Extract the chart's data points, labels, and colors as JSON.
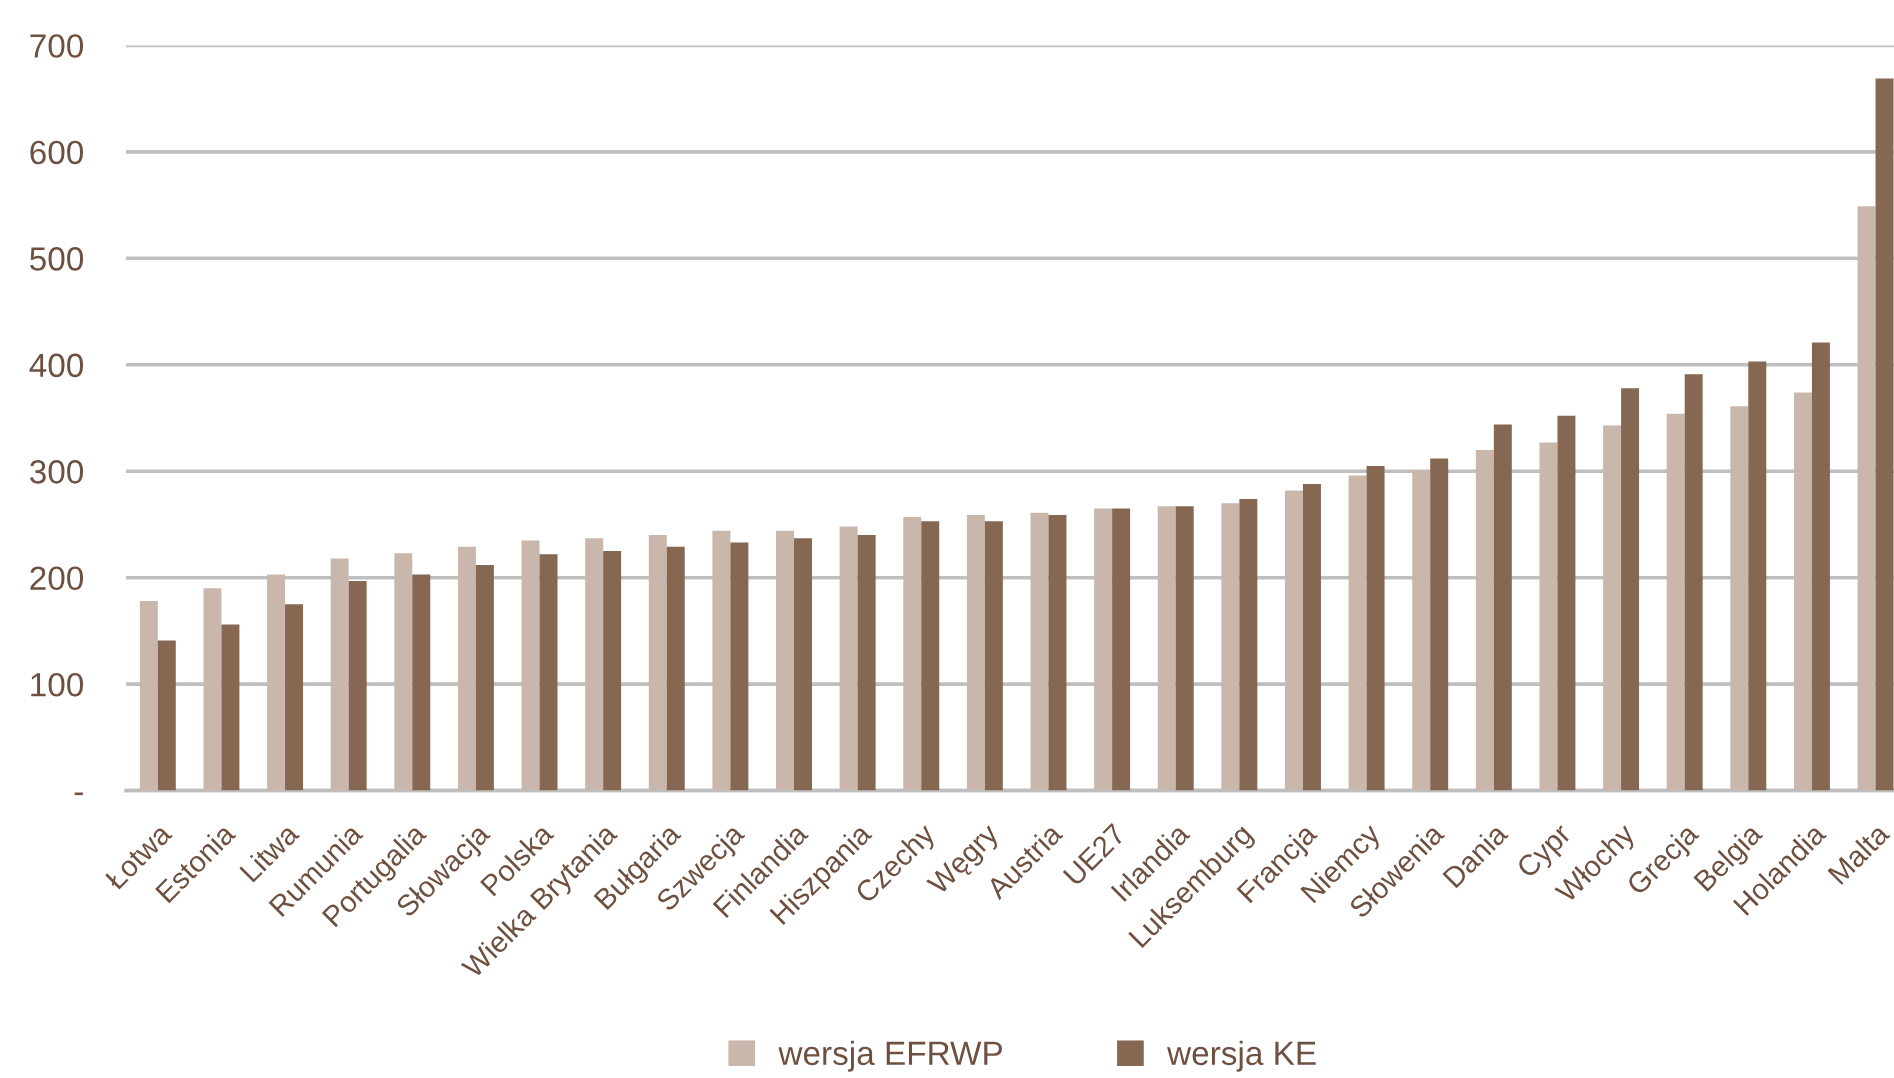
{
  "chart_data": {
    "type": "bar",
    "categories": [
      "Łotwa",
      "Estonia",
      "Litwa",
      "Rumunia",
      "Portugalia",
      "Słowacja",
      "Polska",
      "Wielka Brytania",
      "Bułgaria",
      "Szwecja",
      "Finlandia",
      "Hiszpania",
      "Czechy",
      "Węgry",
      "Austria",
      "UE27",
      "Irlandia",
      "Luksemburg",
      "Francja",
      "Niemcy",
      "Słowenia",
      "Dania",
      "Cypr",
      "Włochy",
      "Grecja",
      "Belgia",
      "Holandia",
      "Malta"
    ],
    "series": [
      {
        "name": "wersja EFRWP",
        "color": "#c8b7aa",
        "values": [
          178,
          190,
          203,
          218,
          223,
          229,
          235,
          237,
          240,
          244,
          244,
          248,
          257,
          259,
          261,
          265,
          267,
          270,
          282,
          296,
          301,
          320,
          327,
          343,
          354,
          361,
          374,
          549
        ]
      },
      {
        "name": "wersja KE",
        "color": "#866751",
        "values": [
          141,
          156,
          175,
          197,
          203,
          212,
          222,
          225,
          229,
          233,
          237,
          240,
          253,
          253,
          259,
          265,
          267,
          274,
          288,
          305,
          312,
          344,
          352,
          378,
          391,
          403,
          421,
          669
        ]
      }
    ],
    "ylim": [
      0,
      700
    ],
    "yticks": [
      {
        "value": 0,
        "label": "-"
      },
      100,
      200,
      300,
      400,
      500,
      600,
      700
    ],
    "grid": "y",
    "legend": "bottom"
  }
}
